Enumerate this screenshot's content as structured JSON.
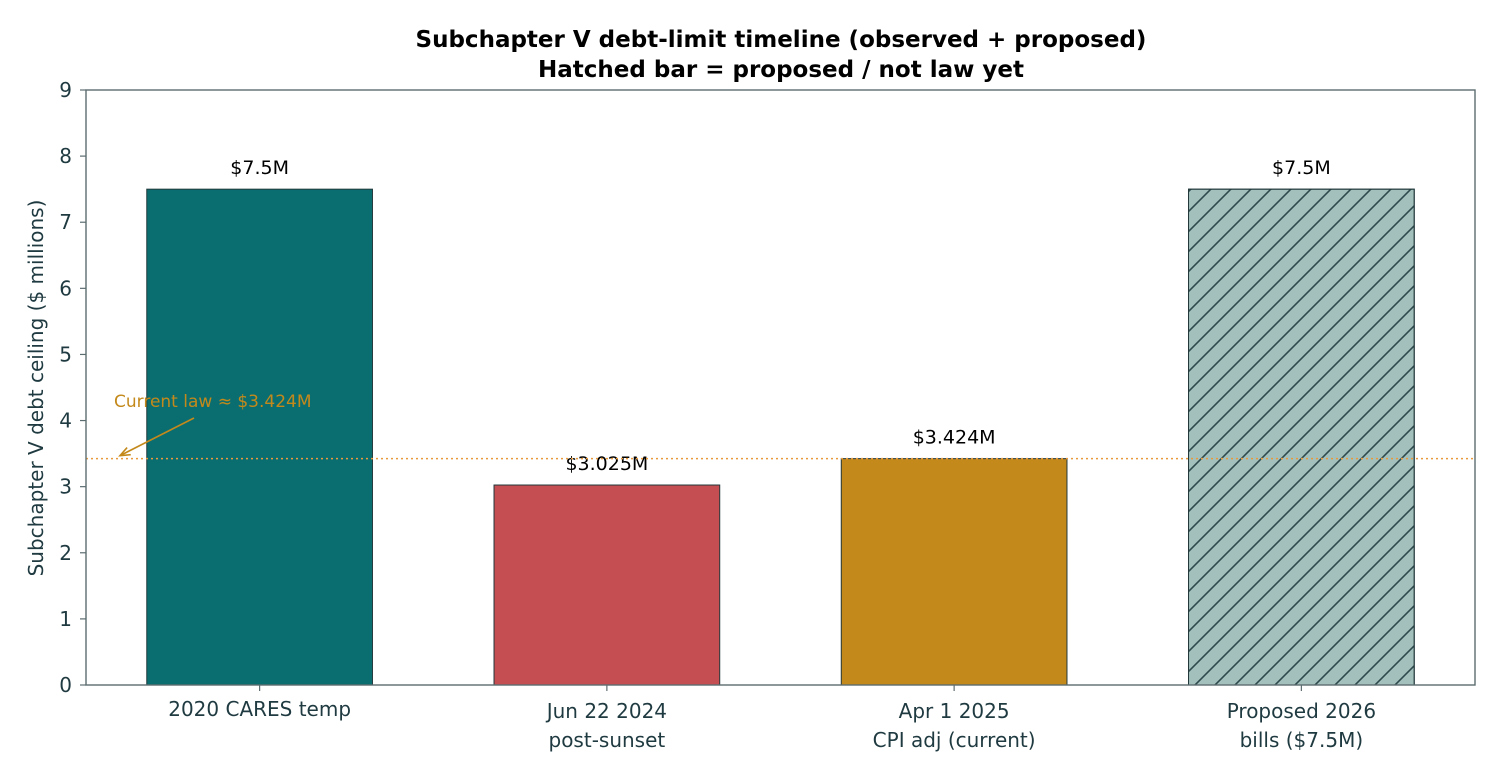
{
  "chart_data": {
    "type": "bar",
    "title": "Subchapter V debt-limit timeline (observed + proposed)",
    "subtitle": "Hatched bar = proposed / not law yet",
    "ylabel": "Subchapter V debt ceiling ($ millions)",
    "xlabel": "",
    "ylim": [
      0,
      9
    ],
    "yticks": [
      0,
      1,
      2,
      3,
      4,
      5,
      6,
      7,
      8,
      9
    ],
    "grid": false,
    "categories": [
      [
        "2020 CARES temp"
      ],
      [
        "Jun 22 2024",
        "post-sunset"
      ],
      [
        "Apr 1 2025",
        "CPI adj (current)"
      ],
      [
        "Proposed 2026",
        "bills ($7.5M)"
      ]
    ],
    "values": [
      7.5,
      3.025,
      3.424,
      7.5
    ],
    "value_labels": [
      "$7.5M",
      "$3.025M",
      "$3.424M",
      "$7.5M"
    ],
    "colors": [
      "#0a6e71",
      "#c44e52",
      "#c4891b",
      "#a3c0bc"
    ],
    "hatched": [
      false,
      false,
      false,
      true
    ],
    "reference_line": {
      "value": 3.424,
      "style": "dotted",
      "color": "#e89a3c"
    },
    "annotation": {
      "text": "Current law ≈ $3.424M",
      "color": "#c4891b",
      "points_to_value": 3.424
    }
  }
}
